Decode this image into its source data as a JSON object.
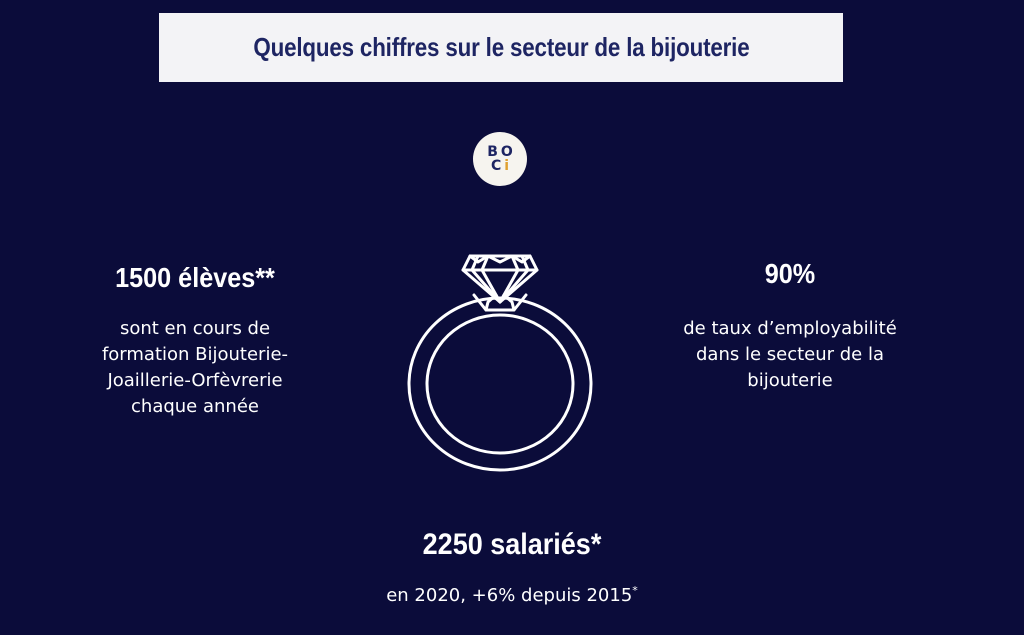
{
  "header": {
    "title": "Quelques chiffres sur le secteur de la bijouterie"
  },
  "logo": {
    "row1": [
      "B",
      "O"
    ],
    "row2": [
      "C",
      "i"
    ],
    "accent_color": "#e0a030"
  },
  "stats": {
    "students": {
      "figure": "1500 élèves**",
      "lines": [
        "sont en cours de",
        "formation Bijouterie-",
        "Joaillerie-Orfèvrerie",
        "chaque année"
      ]
    },
    "employability": {
      "figure": "90%",
      "lines": [
        "de taux d’employabilité",
        "dans le secteur de la",
        "bijouterie"
      ]
    },
    "employees": {
      "figure": "2250 salariés*",
      "desc": "en 2020, +6% depuis 2015",
      "footnote_mark": "*"
    }
  },
  "illustration": {
    "icon": "diamond-ring-icon"
  },
  "colors": {
    "background": "#0b0c3a",
    "title_band": "#f3f3f6",
    "title_text": "#1e2563",
    "text": "#ffffff"
  }
}
